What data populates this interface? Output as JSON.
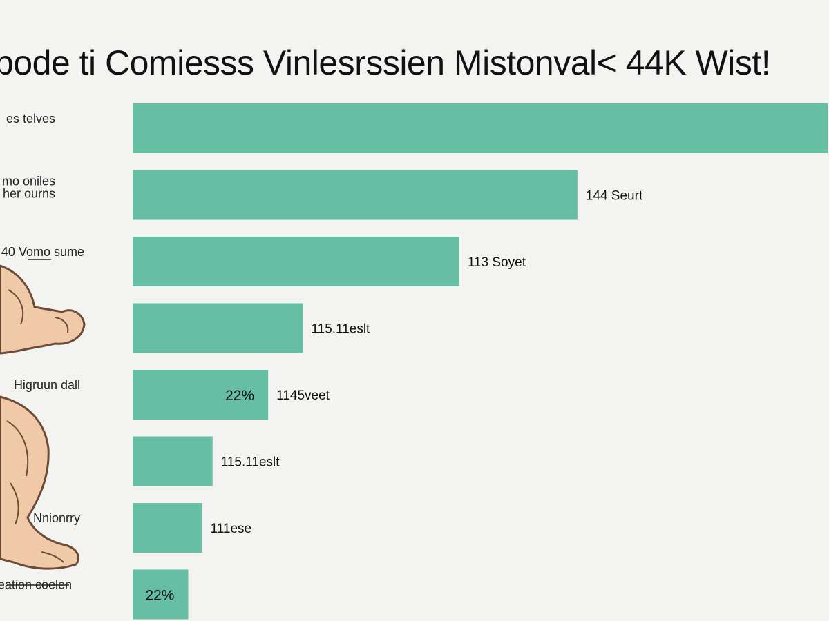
{
  "header": {
    "title": "bode ti Comiesss Vinlesrssien Mistonval< 44K Wist!"
  },
  "chart_data": {
    "type": "bar",
    "orientation": "horizontal",
    "title": "bode ti Comiesss Vinlesrssien Mistonval< 44K Wist!",
    "xlim": [
      0,
      100
    ],
    "grid": false,
    "legend": "none",
    "bar_color": "#66bea3",
    "categories": [
      [
        "es telves"
      ],
      [
        "mo oniles",
        "her ourns"
      ],
      [
        "40 Vomo sume"
      ],
      [
        ""
      ],
      [
        "Higruun dall"
      ],
      [
        ""
      ],
      [
        "Nnionrry"
      ],
      [
        "eation coelen"
      ]
    ],
    "values": [
      100,
      64,
      47,
      24.5,
      19.5,
      11.5,
      10,
      8
    ],
    "value_labels": [
      "",
      "144 Seurt",
      "113 Soyet",
      "115.11eslt",
      "1145veet",
      "115.11eslt",
      "111ese",
      ""
    ],
    "inbar_labels": [
      "",
      "",
      "",
      "",
      "22%",
      "",
      "",
      "22%"
    ]
  },
  "figure": {
    "icon": "muscular-arm-illustration-icon"
  }
}
